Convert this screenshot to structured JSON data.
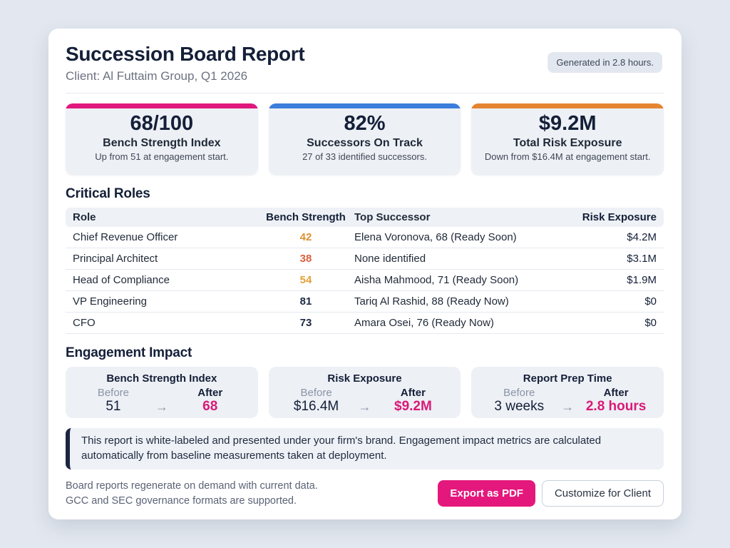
{
  "header": {
    "title": "Succession Board Report",
    "subtitle": "Client: Al Futtaim Group, Q1 2026",
    "badge": "Generated in 2.8 hours."
  },
  "colors": {
    "accent_pink": "#E0187D",
    "accent_blue": "#3B7EDB",
    "accent_orange": "#E58431",
    "after_pink": "#D91A77",
    "export_button_bg": "#E4187C",
    "note_border_navy": "#1B2540"
  },
  "stats": [
    {
      "value": "68/100",
      "label": "Bench Strength Index",
      "note": "Up from 51 at engagement start.",
      "accent": "#E0187D"
    },
    {
      "value": "82%",
      "label": "Successors On Track",
      "note": "27 of 33 identified successors.",
      "accent": "#3B7EDB"
    },
    {
      "value": "$9.2M",
      "label": "Total Risk Exposure",
      "note": "Down from $16.4M at engagement start.",
      "accent": "#E58431"
    }
  ],
  "critical_roles": {
    "heading": "Critical Roles",
    "columns": {
      "role": "Role",
      "bench": "Bench Strength",
      "successor": "Top Successor",
      "risk": "Risk Exposure"
    },
    "rows": [
      {
        "role": "Chief Revenue Officer",
        "bench": "42",
        "bench_color": "#E0912F",
        "successor": "Elena Voronova, 68 (Ready Soon)",
        "risk": "$4.2M"
      },
      {
        "role": "Principal Architect",
        "bench": "38",
        "bench_color": "#D9603C",
        "successor": "None identified",
        "risk": "$3.1M"
      },
      {
        "role": "Head of Compliance",
        "bench": "54",
        "bench_color": "#E5A13A",
        "successor": "Aisha Mahmood, 71 (Ready Soon)",
        "risk": "$1.9M"
      },
      {
        "role": "VP Engineering",
        "bench": "81",
        "bench_color": "#1E2A44",
        "successor": "Tariq Al Rashid, 88 (Ready Now)",
        "risk": "$0"
      },
      {
        "role": "CFO",
        "bench": "73",
        "bench_color": "#1E2A44",
        "successor": "Amara Osei, 76 (Ready Now)",
        "risk": "$0"
      }
    ]
  },
  "engagement_impact": {
    "heading": "Engagement Impact",
    "before_label": "Before",
    "after_label": "After",
    "arrow": "→",
    "cards": [
      {
        "title": "Bench Strength Index",
        "before": "51",
        "after": "68"
      },
      {
        "title": "Risk Exposure",
        "before": "$16.4M",
        "after": "$9.2M"
      },
      {
        "title": "Report Prep Time",
        "before": "3 weeks",
        "after": "2.8 hours"
      }
    ]
  },
  "note": "This report is white-labeled and presented under your firm's brand. Engagement impact metrics are calculated automatically from baseline measurements taken at deployment.",
  "footer": {
    "line1": "Board reports regenerate on demand with current data.",
    "line2": "GCC and SEC governance formats are supported.",
    "export_button": "Export as PDF",
    "customize_button": "Customize for Client"
  }
}
